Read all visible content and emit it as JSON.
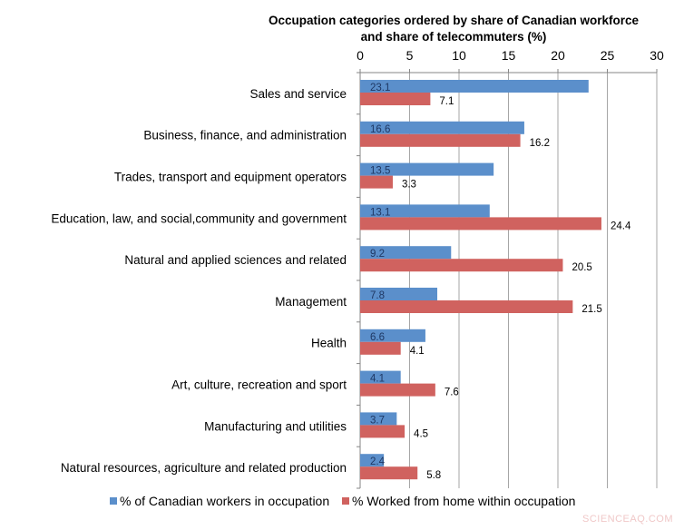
{
  "chart_data": {
    "type": "bar",
    "orientation": "horizontal",
    "title": "Occupation categories ordered by share of Canadian workforce and share of telecommuters (%)",
    "title_lines": [
      "Occupation categories ordered by share of Canadian workforce",
      "and share of telecommuters (%)"
    ],
    "categories": [
      "Sales and service",
      "Business, finance, and administration",
      "Trades, transport and equipment operators",
      "Education, law, and social,community and government",
      "Natural and applied sciences and related",
      "Management",
      "Health",
      "Art, culture, recreation and sport",
      "Manufacturing and utilities",
      "Natural resources, agriculture and related production"
    ],
    "series": [
      {
        "name": "% of Canadian workers in occupation",
        "color": "#5b8fcb",
        "values": [
          23.1,
          16.6,
          13.5,
          13.1,
          9.2,
          7.8,
          6.6,
          4.1,
          3.7,
          2.4
        ]
      },
      {
        "name": "% Worked from home within occupation",
        "color": "#d0625f",
        "values": [
          7.1,
          16.2,
          3.3,
          24.4,
          20.5,
          21.5,
          4.1,
          7.6,
          4.5,
          5.8
        ]
      }
    ],
    "xlim": [
      0,
      30
    ],
    "xticks": [
      "0",
      "5",
      "10",
      "15",
      "20",
      "25",
      "30"
    ],
    "x_axis_position": "top",
    "grid": true,
    "legend_position": "bottom"
  },
  "watermark": "SCIENCEAQ.COM"
}
